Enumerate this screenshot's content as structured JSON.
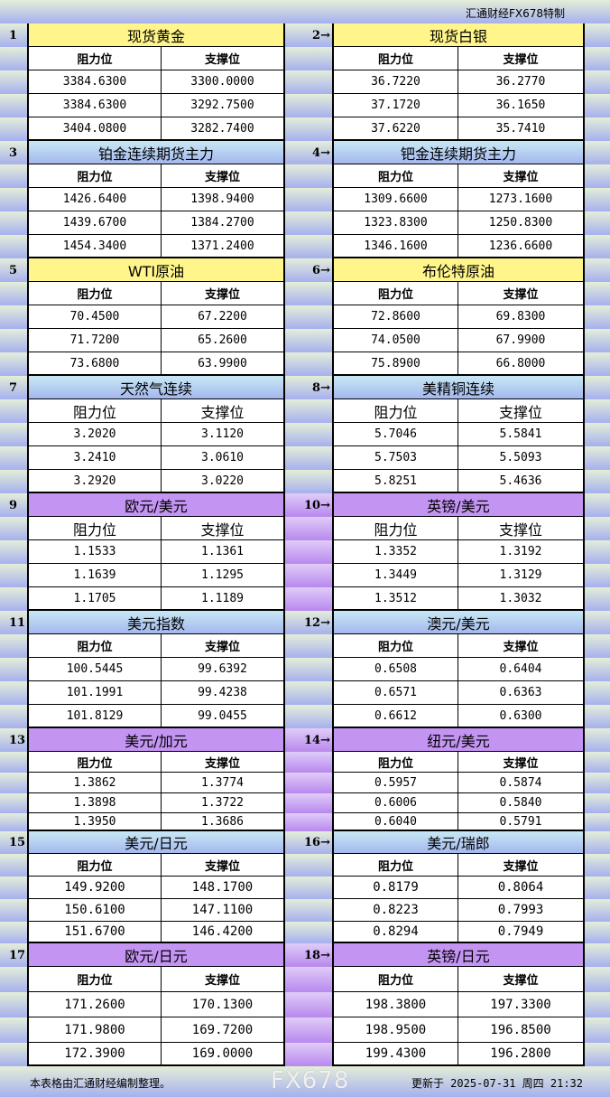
{
  "brand": "汇通财经FX678特制",
  "col_resistance": "阻力位",
  "col_support": "支撑位",
  "colors": {
    "yellow": "#fff58a",
    "blue": "#a4b8ee",
    "purple": "#c394f2"
  },
  "sections": [
    {
      "left": {
        "num": "1",
        "name": "现货黄金",
        "rows": [
          [
            "3384.6300",
            "3300.0000"
          ],
          [
            "3384.6300",
            "3292.7500"
          ],
          [
            "3404.0800",
            "3282.7400"
          ]
        ]
      },
      "right": {
        "num": "2→",
        "name": "现货白银",
        "rows": [
          [
            "36.7220",
            "36.2770"
          ],
          [
            "37.1720",
            "36.1650"
          ],
          [
            "37.6220",
            "35.7410"
          ]
        ]
      },
      "color": "yellow"
    },
    {
      "left": {
        "num": "3",
        "name": "铂金连续期货主力",
        "rows": [
          [
            "1426.6400",
            "1398.9400"
          ],
          [
            "1439.6700",
            "1384.2700"
          ],
          [
            "1454.3400",
            "1371.2400"
          ]
        ]
      },
      "right": {
        "num": "4→",
        "name": "钯金连续期货主力",
        "rows": [
          [
            "1309.6600",
            "1273.1600"
          ],
          [
            "1323.8300",
            "1250.8300"
          ],
          [
            "1346.1600",
            "1236.6600"
          ]
        ]
      },
      "color": "blue"
    },
    {
      "left": {
        "num": "5",
        "name": "WTI原油",
        "rows": [
          [
            "70.4500",
            "67.2200"
          ],
          [
            "71.7200",
            "65.2600"
          ],
          [
            "73.6800",
            "63.9900"
          ]
        ]
      },
      "right": {
        "num": "6→",
        "name": "布伦特原油",
        "rows": [
          [
            "72.8600",
            "69.8300"
          ],
          [
            "74.0500",
            "67.9900"
          ],
          [
            "75.8900",
            "66.8000"
          ]
        ]
      },
      "color": "yellow"
    },
    {
      "left": {
        "num": "7",
        "name": "天然气连续",
        "rows": [
          [
            "3.2020",
            "3.1120"
          ],
          [
            "3.2410",
            "3.0610"
          ],
          [
            "3.2920",
            "3.0220"
          ]
        ]
      },
      "right": {
        "num": "8→",
        "name": "美精铜连续",
        "rows": [
          [
            "5.7046",
            "5.5841"
          ],
          [
            "5.7503",
            "5.5093"
          ],
          [
            "5.8251",
            "5.4636"
          ]
        ]
      },
      "color": "blue"
    },
    {
      "left": {
        "num": "9",
        "name": "欧元/美元",
        "rows": [
          [
            "1.1533",
            "1.1361"
          ],
          [
            "1.1639",
            "1.1295"
          ],
          [
            "1.1705",
            "1.1189"
          ]
        ]
      },
      "right": {
        "num": "10→",
        "name": "英镑/美元",
        "rows": [
          [
            "1.3352",
            "1.3192"
          ],
          [
            "1.3449",
            "1.3129"
          ],
          [
            "1.3512",
            "1.3032"
          ]
        ]
      },
      "color": "purple"
    },
    {
      "left": {
        "num": "11",
        "name": "美元指数",
        "rows": [
          [
            "100.5445",
            "99.6392"
          ],
          [
            "101.1991",
            "99.4238"
          ],
          [
            "101.8129",
            "99.0455"
          ]
        ]
      },
      "right": {
        "num": "12→",
        "name": "澳元/美元",
        "rows": [
          [
            "0.6508",
            "0.6404"
          ],
          [
            "0.6571",
            "0.6363"
          ],
          [
            "0.6612",
            "0.6300"
          ]
        ]
      },
      "color": "blue"
    },
    {
      "left": {
        "num": "13",
        "name": "美元/加元",
        "rows": [
          [
            "1.3862",
            "1.3774"
          ],
          [
            "1.3898",
            "1.3722"
          ],
          [
            "1.3950",
            "1.3686"
          ]
        ]
      },
      "right": {
        "num": "14→",
        "name": "纽元/美元",
        "rows": [
          [
            "0.5957",
            "0.5874"
          ],
          [
            "0.6006",
            "0.5840"
          ],
          [
            "0.6040",
            "0.5791"
          ]
        ]
      },
      "color": "purple"
    },
    {
      "left": {
        "num": "15",
        "name": "美元/日元",
        "rows": [
          [
            "149.9200",
            "148.1700"
          ],
          [
            "150.6100",
            "147.1100"
          ],
          [
            "151.6700",
            "146.4200"
          ]
        ]
      },
      "right": {
        "num": "16→",
        "name": "美元/瑞郎",
        "rows": [
          [
            "0.8179",
            "0.8064"
          ],
          [
            "0.8223",
            "0.7993"
          ],
          [
            "0.8294",
            "0.7949"
          ]
        ]
      },
      "color": "blue"
    },
    {
      "left": {
        "num": "17",
        "name": "欧元/日元",
        "rows": [
          [
            "171.2600",
            "170.1300"
          ],
          [
            "171.9800",
            "169.7200"
          ],
          [
            "172.3900",
            "169.0000"
          ]
        ]
      },
      "right": {
        "num": "18→",
        "name": "英镑/日元",
        "rows": [
          [
            "198.3800",
            "197.3300"
          ],
          [
            "198.9500",
            "196.8500"
          ],
          [
            "199.4300",
            "196.2800"
          ]
        ]
      },
      "color": "purple"
    }
  ],
  "footer": {
    "note": "本表格由汇通财经编制整理。",
    "updated": "更新于 2025-07-31 周四 21:32"
  },
  "watermark": "FX678"
}
